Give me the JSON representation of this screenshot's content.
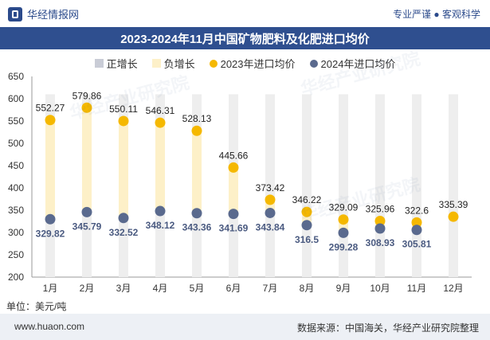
{
  "header": {
    "brand": "华经情报网",
    "slogan": "专业严谨 ● 客观科学"
  },
  "chart_data": {
    "type": "line",
    "title": "2023-2024年11月中国矿物肥料及化肥进口均价",
    "categories": [
      "1月",
      "2月",
      "3月",
      "4月",
      "5月",
      "6月",
      "7月",
      "8月",
      "9月",
      "10月",
      "11月",
      "12月"
    ],
    "series": [
      {
        "name": "2023年进口均价",
        "color": "#f5b800",
        "values": [
          552.27,
          579.86,
          550.11,
          546.31,
          528.13,
          445.66,
          373.42,
          346.22,
          329.09,
          325.96,
          322.6,
          335.39
        ]
      },
      {
        "name": "2024年进口均价",
        "color": "#5a6a8e",
        "values": [
          329.82,
          345.79,
          332.52,
          348.12,
          343.36,
          341.69,
          343.84,
          316.5,
          299.28,
          308.93,
          305.81,
          null
        ]
      }
    ],
    "legend": [
      {
        "label": "正增长",
        "color": "#c9ccd6",
        "shape": "rect"
      },
      {
        "label": "负增长",
        "color": "#fdf0c8",
        "shape": "rect"
      },
      {
        "label": "2023年进口均价",
        "color": "#f5b800",
        "shape": "dot"
      },
      {
        "label": "2024年进口均价",
        "color": "#5a6a8e",
        "shape": "dot"
      }
    ],
    "ylim": [
      200,
      650
    ],
    "yticks": [
      200,
      250,
      300,
      350,
      400,
      450,
      500,
      550,
      600,
      650
    ],
    "background_bar_top": 610,
    "unit": "单位：美元/吨"
  },
  "footer": {
    "site": "www.huaon.com",
    "source": "数据来源：中国海关，华经产业研究院整理"
  },
  "watermark": "华经产业研究院"
}
